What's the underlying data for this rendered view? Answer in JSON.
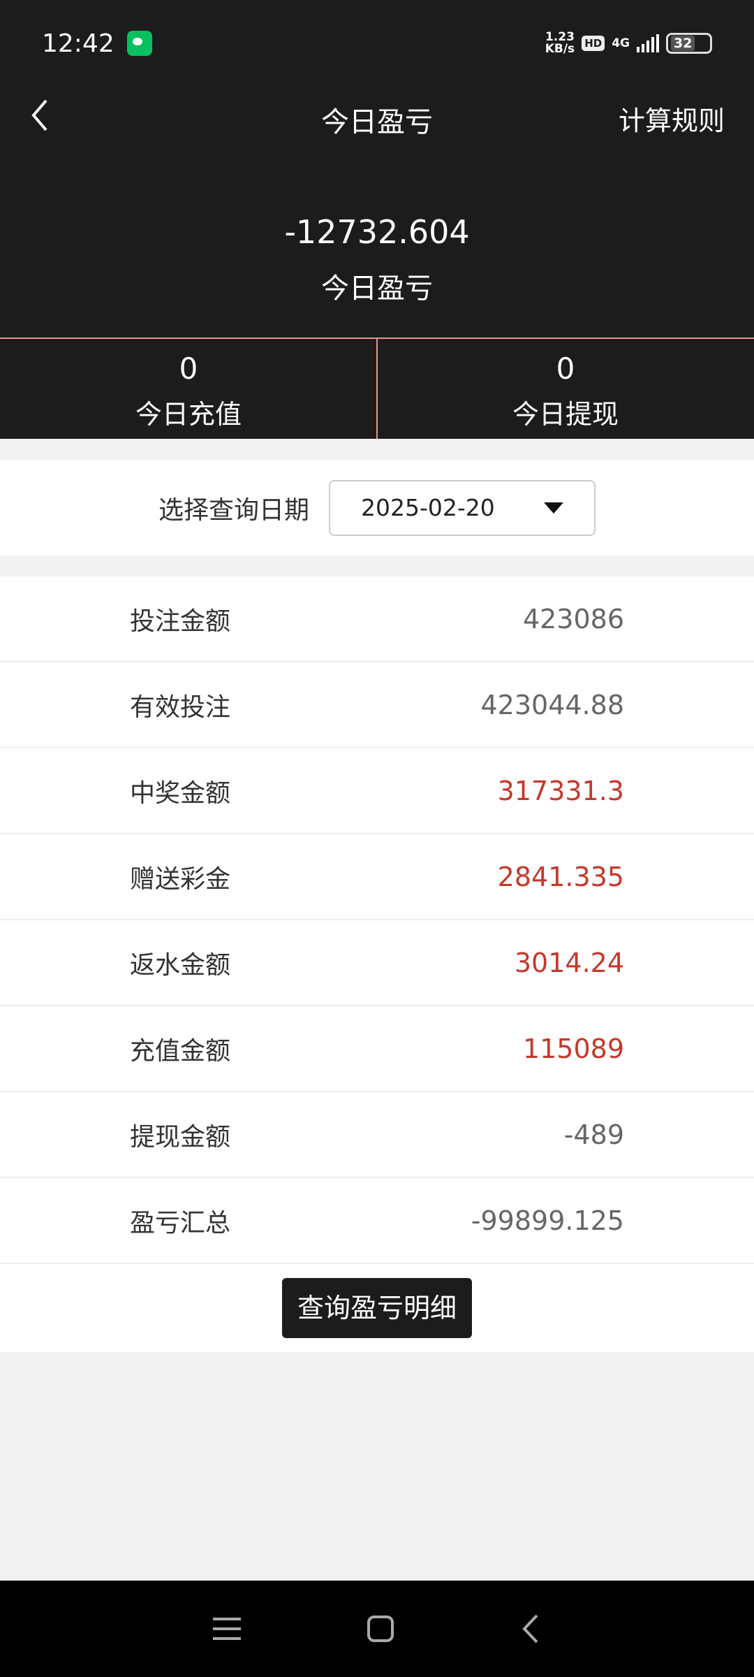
{
  "status_bar": {
    "time": "12:42",
    "net_speed": "1.23",
    "net_unit": "KB/s",
    "hd": "HD",
    "network": "4G",
    "battery": "32"
  },
  "header": {
    "title": "今日盈亏",
    "rules_label": "计算规则",
    "total_value": "-12732.604",
    "total_label": "今日盈亏"
  },
  "stats": [
    {
      "value": "0",
      "label": "今日充值"
    },
    {
      "value": "0",
      "label": "今日提现"
    }
  ],
  "filter": {
    "label": "选择查询日期",
    "date": "2025-02-20"
  },
  "rows": [
    {
      "label": "投注金额",
      "value": "423086",
      "highlight": false
    },
    {
      "label": "有效投注",
      "value": "423044.88",
      "highlight": false
    },
    {
      "label": "中奖金额",
      "value": "317331.3",
      "highlight": true
    },
    {
      "label": "赠送彩金",
      "value": "2841.335",
      "highlight": true
    },
    {
      "label": "返水金额",
      "value": "3014.24",
      "highlight": true
    },
    {
      "label": "充值金额",
      "value": "115089",
      "highlight": true
    },
    {
      "label": "提现金额",
      "value": "-489",
      "highlight": false
    },
    {
      "label": "盈亏汇总",
      "value": "-99899.125",
      "highlight": false
    }
  ],
  "detail_button": "查询盈亏明细",
  "colors": {
    "header_bg": "#1c1c1c",
    "accent_line": "#e8958a",
    "highlight_value": "#c5382a"
  }
}
